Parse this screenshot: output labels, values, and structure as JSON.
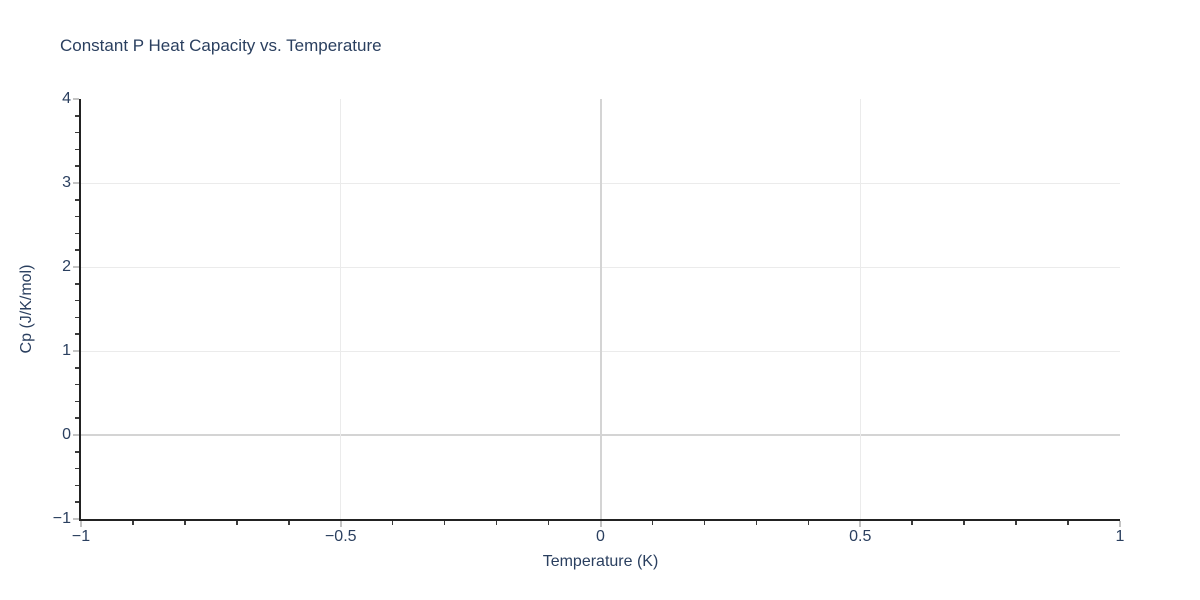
{
  "chart_data": {
    "type": "line",
    "title": "Constant P Heat Capacity vs. Temperature",
    "xlabel": "Temperature (K)",
    "ylabel": "Cp (J/K/mol)",
    "xlim": [
      -1,
      1
    ],
    "ylim": [
      -1,
      4
    ],
    "x_ticks": {
      "values": [
        -1,
        -0.5,
        0,
        0.5,
        1
      ],
      "labels": [
        "−1",
        "−0.5",
        "0",
        "0.5",
        "1"
      ]
    },
    "y_ticks": {
      "values": [
        -1,
        0,
        1,
        2,
        3,
        4
      ],
      "labels": [
        "−1",
        "0",
        "1",
        "2",
        "3",
        "4"
      ]
    },
    "x_minor_step": 0.1,
    "y_minor_step": 0.2,
    "x_gridlines": [
      -0.5,
      0,
      0.5
    ],
    "y_gridlines": [
      0,
      1,
      2,
      3
    ],
    "zero_lines": {
      "x": 0,
      "y": 0
    },
    "grid": true,
    "legend": false,
    "series": [],
    "colors": {
      "text": "#2a3f5f",
      "axis_line": "#222222",
      "grid": "#ebebeb",
      "zero_line": "#d4d4d4",
      "major_tick": "#c4c4c4",
      "minor_tick": "#3b3b3b",
      "background": "#ffffff"
    }
  }
}
